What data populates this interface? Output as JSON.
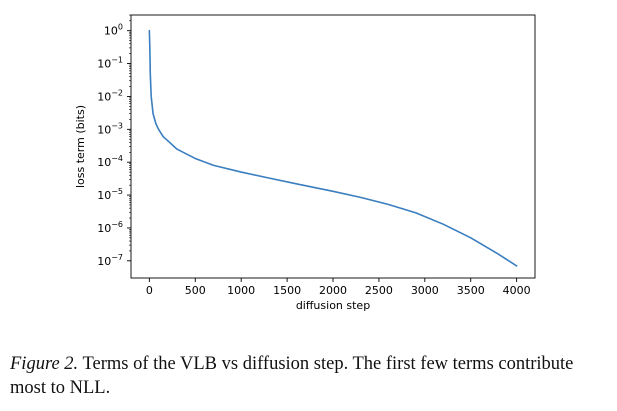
{
  "chart_data": {
    "type": "line",
    "xlabel": "diffusion step",
    "ylabel": "loss term (bits)",
    "x_ticks": [
      0,
      500,
      1000,
      1500,
      2000,
      2500,
      3000,
      3500,
      4000
    ],
    "y_ticks": [
      {
        "base": "10",
        "exp": "0"
      },
      {
        "base": "10",
        "exp": "−1"
      },
      {
        "base": "10",
        "exp": "−2"
      },
      {
        "base": "10",
        "exp": "−3"
      },
      {
        "base": "10",
        "exp": "−4"
      },
      {
        "base": "10",
        "exp": "−5"
      },
      {
        "base": "10",
        "exp": "−6"
      },
      {
        "base": "10",
        "exp": "−7"
      }
    ],
    "y_scale": "log",
    "xlim": [
      -200,
      4200
    ],
    "ylim": [
      3e-08,
      3
    ],
    "color": "#3a7ebf",
    "series": [
      {
        "x": [
          0,
          5,
          10,
          20,
          40,
          70,
          100,
          150,
          200,
          300,
          400,
          500,
          700,
          1000,
          1300,
          1600,
          2000,
          2300,
          2600,
          2900,
          3200,
          3500,
          3800,
          4000
        ],
        "y": [
          1.0,
          0.3,
          0.05,
          0.01,
          0.003,
          0.0015,
          0.001,
          0.0006,
          0.00045,
          0.00025,
          0.00018,
          0.00013,
          8e-05,
          5e-05,
          3.3e-05,
          2.2e-05,
          1.3e-05,
          8.5e-06,
          5.2e-06,
          2.9e-06,
          1.3e-06,
          5e-07,
          1.6e-07,
          7e-08
        ]
      }
    ]
  },
  "caption": {
    "label": "Figure 2.",
    "text": "Terms of the VLB vs diffusion step. The first few terms contribute most to NLL."
  }
}
